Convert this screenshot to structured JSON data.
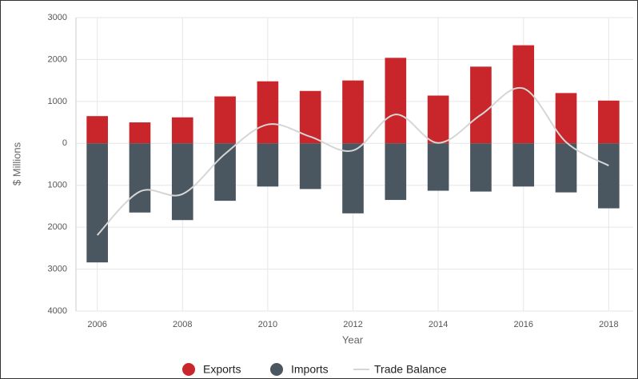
{
  "chart_data": {
    "type": "bar",
    "y_label": "$ Millions",
    "x_label": "Year",
    "x": [
      2006,
      2007,
      2008,
      2009,
      2010,
      2011,
      2012,
      2013,
      2014,
      2015,
      2016,
      2017,
      2018
    ],
    "series": [
      {
        "name": "Exports",
        "color": "#c8262b",
        "type": "bar",
        "values": [
          650,
          500,
          620,
          1120,
          1480,
          1250,
          1500,
          2040,
          1140,
          1830,
          2340,
          1200,
          1020
        ]
      },
      {
        "name": "Imports",
        "color": "#4a5761",
        "type": "bar",
        "values": [
          -2840,
          -1650,
          -1830,
          -1370,
          -1030,
          -1090,
          -1670,
          -1350,
          -1130,
          -1150,
          -1030,
          -1170,
          -1550
        ]
      },
      {
        "name": "Trade Balance",
        "color": "#d6d6d6",
        "type": "line",
        "values": [
          -2190,
          -1150,
          -1210,
          -250,
          450,
          160,
          -170,
          690,
          10,
          680,
          1310,
          30,
          -530
        ]
      }
    ],
    "xlim": [
      2005.5,
      2018.5
    ],
    "xticks": [
      2006,
      2008,
      2010,
      2012,
      2014,
      2016,
      2018
    ],
    "ylim": [
      -4000,
      3000
    ],
    "yticks": [
      {
        "value": -4000,
        "label": "4000"
      },
      {
        "value": -3000,
        "label": "3000"
      },
      {
        "value": -2000,
        "label": "2000"
      },
      {
        "value": -1000,
        "label": "1000"
      },
      0,
      1000,
      2000,
      3000
    ],
    "grid": true,
    "legend": "bottom"
  }
}
